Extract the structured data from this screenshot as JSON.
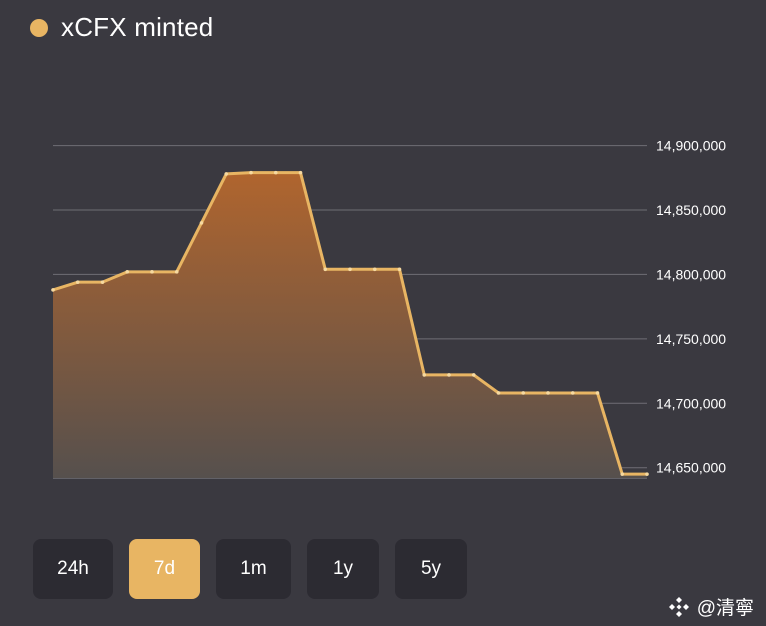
{
  "legend": {
    "label": "xCFX minted",
    "color": "#e8b563"
  },
  "range_buttons": [
    {
      "label": "24h",
      "active": false
    },
    {
      "label": "7d",
      "active": true
    },
    {
      "label": "1m",
      "active": false
    },
    {
      "label": "1y",
      "active": false
    },
    {
      "label": "5y",
      "active": false
    }
  ],
  "watermark": {
    "text": "@清寧"
  },
  "chart_data": {
    "type": "area",
    "title": "xCFX minted",
    "xlabel": "",
    "ylabel": "",
    "x": [
      0,
      1,
      2,
      3,
      4,
      5,
      6,
      7,
      8,
      9,
      10,
      11,
      12,
      13,
      14,
      15,
      16,
      17,
      18,
      19,
      20,
      21,
      22,
      23,
      24
    ],
    "values": [
      14788000,
      14794000,
      14794000,
      14802000,
      14802000,
      14802000,
      14840000,
      14878000,
      14879000,
      14879000,
      14879000,
      14804000,
      14804000,
      14804000,
      14804000,
      14722000,
      14722000,
      14722000,
      14708000,
      14708000,
      14708000,
      14708000,
      14708000,
      14645000,
      14645000
    ],
    "ylim": [
      14642000,
      14902000
    ],
    "yticks": [
      14650000,
      14700000,
      14750000,
      14800000,
      14850000,
      14900000
    ],
    "ytick_labels": [
      "14,650,000",
      "14,700,000",
      "14,750,000",
      "14,800,000",
      "14,850,000",
      "14,900,000"
    ],
    "grid": true,
    "line_color": "#e8b563",
    "fill_top_color": "#b0652e",
    "fill_bottom_color": "#56504d",
    "grid_color": "#6f6e75"
  }
}
